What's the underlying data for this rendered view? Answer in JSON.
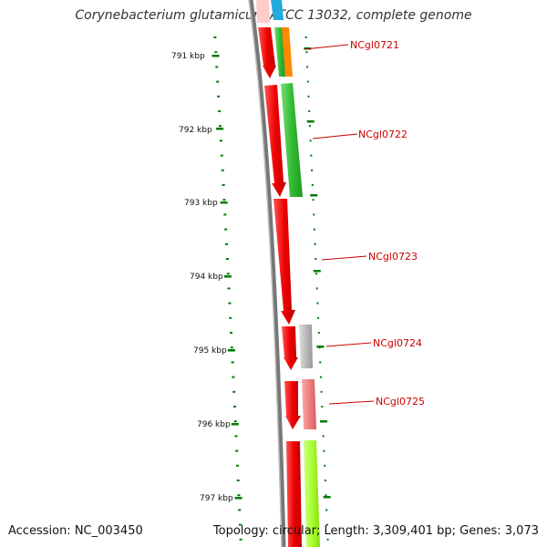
{
  "title": "Corynebacterium glutamicum ATCC 13032, complete genome",
  "footer": {
    "accession": "Accession: NC_003450",
    "topology": "Topology: circular; Length: 3,309,401 bp; Genes: 3,073"
  },
  "scale_labels": [
    "791 kbp",
    "792 kbp",
    "793 kbp",
    "794 kbp",
    "795 kbp",
    "796 kbp",
    "797 kbp"
  ],
  "gene_labels": [
    "NCgl0721",
    "NCgl0722",
    "NCgl0723",
    "NCgl0724",
    "NCgl0725"
  ],
  "colors": {
    "label": "#cc0000",
    "tick": "#007a00",
    "backbone": "#777777",
    "cds_forward": "#ee0000",
    "cds_green": "#33bb33",
    "cds_orange": "#ff8800",
    "cds_cyan": "#22aadd",
    "cds_gray": "#bbbbbb",
    "cds_pink": "#f08080",
    "cds_lime": "#aaff33"
  }
}
